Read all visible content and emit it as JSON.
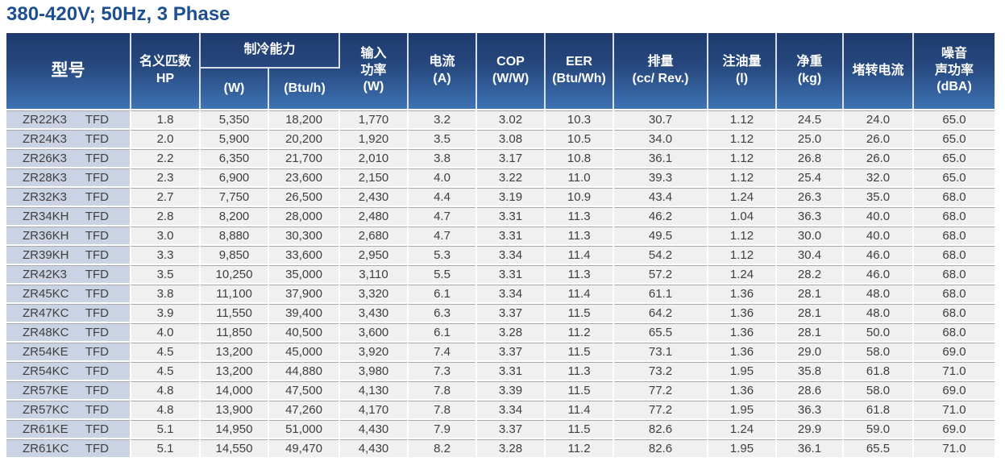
{
  "title": "380-420V; 50Hz, 3 Phase",
  "colors": {
    "title_blue": "#1d4f91",
    "header_gradient_top": "#1e3a6d",
    "header_gradient_bottom": "#3e73b4",
    "model_column_bg": "#c9d3e3",
    "row_bg": "#f0f0f1",
    "header_text": "#ffffff"
  },
  "table": {
    "header": {
      "model": "型号",
      "hp": "名义匹数\nHP",
      "cooling": "制冷能力",
      "cooling_w": "(W)",
      "cooling_btu": "(Btu/h)",
      "input_power": "输入\n功率\n(W)",
      "current": "电流\n(A)",
      "cop": "COP\n(W/W)",
      "eer": "EER\n(Btu/Wh)",
      "displacement": "排量\n(cc/ Rev.)",
      "oil_charge": "注油量\n(l)",
      "net_weight": "净重\n(kg)",
      "locked_rotor": "堵转电流",
      "noise": "噪音\n声功率\n(dBA)"
    },
    "rows": [
      [
        "ZR22K3",
        "TFD",
        "1.8",
        "5,350",
        "18,200",
        "1,770",
        "3.2",
        "3.02",
        "10.3",
        "30.7",
        "1.12",
        "24.5",
        "24.0",
        "65.0"
      ],
      [
        "ZR24K3",
        "TFD",
        "2.0",
        "5,900",
        "20,200",
        "1,920",
        "3.5",
        "3.08",
        "10.5",
        "34.0",
        "1.12",
        "25.0",
        "26.0",
        "65.0"
      ],
      [
        "ZR26K3",
        "TFD",
        "2.2",
        "6,350",
        "21,700",
        "2,010",
        "3.8",
        "3.17",
        "10.8",
        "36.1",
        "1.12",
        "26.8",
        "26.0",
        "65.0"
      ],
      [
        "ZR28K3",
        "TFD",
        "2.3",
        "6,900",
        "23,600",
        "2,150",
        "4.0",
        "3.22",
        "11.0",
        "39.3",
        "1.12",
        "25.4",
        "32.0",
        "65.0"
      ],
      [
        "ZR32K3",
        "TFD",
        "2.7",
        "7,750",
        "26,500",
        "2,430",
        "4.4",
        "3.19",
        "10.9",
        "43.4",
        "1.24",
        "26.3",
        "35.0",
        "68.0"
      ],
      [
        "ZR34KH",
        "TFD",
        "2.8",
        "8,200",
        "28,000",
        "2,480",
        "4.7",
        "3.31",
        "11.3",
        "46.2",
        "1.04",
        "36.3",
        "40.0",
        "68.0"
      ],
      [
        "ZR36KH",
        "TFD",
        "3.0",
        "8,880",
        "30,300",
        "2,680",
        "4.7",
        "3.31",
        "11.3",
        "49.5",
        "1.12",
        "30.0",
        "40.0",
        "68.0"
      ],
      [
        "ZR39KH",
        "TFD",
        "3.3",
        "9,850",
        "33,600",
        "2,950",
        "5.3",
        "3.34",
        "11.4",
        "54.2",
        "1.12",
        "30.4",
        "46.0",
        "68.0"
      ],
      [
        "ZR42K3",
        "TFD",
        "3.5",
        "10,250",
        "35,000",
        "3,110",
        "5.5",
        "3.31",
        "11.3",
        "57.2",
        "1.24",
        "28.2",
        "46.0",
        "68.0"
      ],
      [
        "ZR45KC",
        "TFD",
        "3.8",
        "11,100",
        "37,900",
        "3,320",
        "6.1",
        "3.34",
        "11.4",
        "61.1",
        "1.36",
        "28.1",
        "48.0",
        "68.0"
      ],
      [
        "ZR47KC",
        "TFD",
        "3.9",
        "11,550",
        "39,400",
        "3,430",
        "6.3",
        "3.37",
        "11.5",
        "64.2",
        "1.36",
        "28.1",
        "48.0",
        "68.0"
      ],
      [
        "ZR48KC",
        "TFD",
        "4.0",
        "11,850",
        "40,500",
        "3,600",
        "6.1",
        "3.28",
        "11.2",
        "65.5",
        "1.36",
        "28.1",
        "50.0",
        "68.0"
      ],
      [
        "ZR54KE",
        "TFD",
        "4.5",
        "13,200",
        "45,000",
        "3,920",
        "7.4",
        "3.37",
        "11.5",
        "73.1",
        "1.36",
        "29.0",
        "58.0",
        "69.0"
      ],
      [
        "ZR54KC",
        "TFD",
        "4.5",
        "13,200",
        "44,880",
        "3,980",
        "7.3",
        "3.31",
        "11.3",
        "73.2",
        "1.95",
        "35.8",
        "61.8",
        "71.0"
      ],
      [
        "ZR57KE",
        "TFD",
        "4.8",
        "14,000",
        "47,500",
        "4,130",
        "7.8",
        "3.39",
        "11.5",
        "77.2",
        "1.36",
        "28.6",
        "58.0",
        "69.0"
      ],
      [
        "ZR57KC",
        "TFD",
        "4.8",
        "13,900",
        "47,260",
        "4,170",
        "7.8",
        "3.34",
        "11.4",
        "77.2",
        "1.95",
        "36.3",
        "61.8",
        "71.0"
      ],
      [
        "ZR61KE",
        "TFD",
        "5.1",
        "14,950",
        "51,000",
        "4,430",
        "7.9",
        "3.37",
        "11.5",
        "82.6",
        "1.24",
        "29.9",
        "59.0",
        "69.0"
      ],
      [
        "ZR61KC",
        "TFD",
        "5.1",
        "14,550",
        "49,470",
        "4,430",
        "8.2",
        "3.28",
        "11.2",
        "82.6",
        "1.95",
        "36.1",
        "65.5",
        "71.0"
      ]
    ]
  }
}
